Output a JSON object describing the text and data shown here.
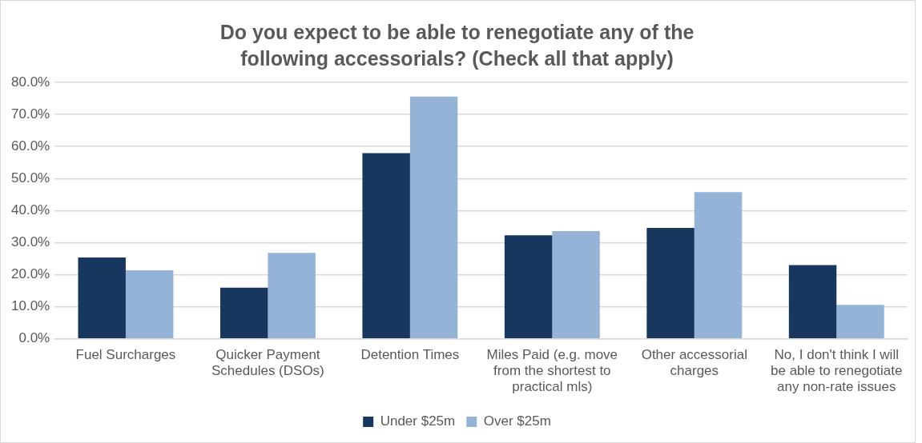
{
  "chart_data": {
    "type": "bar",
    "title": "Do you expect to be able to renegotiate any of the following accessorials? (Check all that apply)",
    "categories": [
      "Fuel Surcharges",
      "Quicker Payment Schedules (DSOs)",
      "Detention Times",
      "Miles Paid (e.g. move from the shortest to practical mls)",
      "Other accessorial charges",
      "No, I don't think I will be able to renegotiate any non-rate issues"
    ],
    "series": [
      {
        "name": "Under $25m",
        "color": "#17375e",
        "values": [
          25.4,
          16.0,
          57.9,
          32.3,
          34.6,
          23.0
        ]
      },
      {
        "name": "Over $25m",
        "color": "#95b3d7",
        "values": [
          21.4,
          26.8,
          75.6,
          33.6,
          45.8,
          10.6
        ]
      }
    ],
    "ylim": [
      0,
      80
    ],
    "yticks": [
      {
        "value": 0,
        "label": "0.0%"
      },
      {
        "value": 10,
        "label": "10.0%"
      },
      {
        "value": 20,
        "label": "20.0%"
      },
      {
        "value": 30,
        "label": "30.0%"
      },
      {
        "value": 40,
        "label": "40.0%"
      },
      {
        "value": 50,
        "label": "50.0%"
      },
      {
        "value": 60,
        "label": "60.0%"
      },
      {
        "value": 70,
        "label": "70.0%"
      },
      {
        "value": 80,
        "label": "80.0%"
      }
    ],
    "grid": "y",
    "legend": "bottom"
  }
}
